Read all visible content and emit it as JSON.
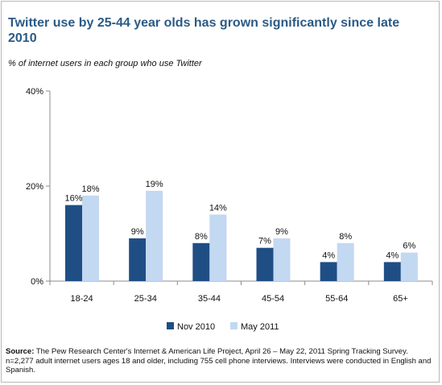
{
  "title": "Twitter use by 25-44 year olds has grown significantly since late 2010",
  "subtitle": "% of internet users in each group who use Twitter",
  "source": {
    "label": "Source:",
    "text": "The Pew Research Center's Internet & American Life Project, April 26 – May 22, 2011 Spring Tracking Survey. n=2,277 adult internet users ages 18 and older, including 755 cell phone interviews. Interviews were conducted in English and Spanish."
  },
  "colors": {
    "nov": "#1f4e85",
    "may": "#c3d8f1",
    "title": "#2a5a86"
  },
  "chart_data": {
    "type": "bar",
    "categories": [
      "18-24",
      "25-34",
      "35-44",
      "45-54",
      "55-64",
      "65+"
    ],
    "series": [
      {
        "name": "Nov 2010",
        "values": [
          16,
          9,
          8,
          7,
          4,
          4
        ],
        "labels": [
          "16%",
          "9%",
          "8%",
          "7%",
          "4%",
          "4%"
        ]
      },
      {
        "name": "May 2011",
        "values": [
          18,
          19,
          14,
          9,
          8,
          6
        ],
        "labels": [
          "18%",
          "19%",
          "14%",
          "9%",
          "8%",
          "6%"
        ]
      }
    ],
    "ylim": [
      0,
      40
    ],
    "yticks": [
      "0%",
      "20%",
      "40%"
    ],
    "ytick_values": [
      0,
      20,
      40
    ],
    "legend": "bottom-center",
    "grid": false
  }
}
